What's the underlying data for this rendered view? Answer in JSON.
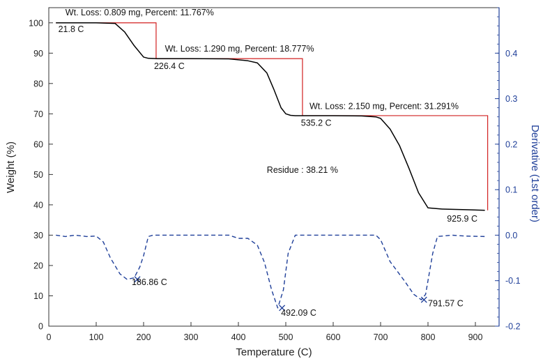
{
  "chart_data": {
    "type": "line",
    "xlabel": "Temperature (C)",
    "ylabel": "Weight (%)",
    "y2label": "Derivative (1st order)",
    "xlim": [
      0,
      950
    ],
    "ylim": [
      0,
      105
    ],
    "y2lim": [
      -0.2,
      0.5
    ],
    "x_ticks": [
      0,
      100,
      200,
      300,
      400,
      500,
      600,
      700,
      800,
      900
    ],
    "y_ticks": [
      0,
      10,
      20,
      30,
      40,
      50,
      60,
      70,
      80,
      90,
      100
    ],
    "y2_ticks": [
      -0.2,
      -0.1,
      0.0,
      0.1,
      0.2,
      0.3,
      0.4
    ],
    "grid": false,
    "colors": {
      "weight": "#000000",
      "derivative": "#1f3f99",
      "steps": "#d22020",
      "right_axis": "#1f3f99"
    },
    "series": [
      {
        "axis": "left",
        "style": "solid",
        "x": [
          15,
          100,
          140,
          160,
          180,
          200,
          210,
          230,
          300,
          380,
          420,
          440,
          460,
          475,
          490,
          500,
          510,
          520,
          535,
          600,
          660,
          690,
          700,
          720,
          740,
          760,
          780,
          800,
          830,
          880,
          920
        ],
        "y": [
          100,
          100,
          99.8,
          97,
          92.5,
          88.7,
          88.3,
          88.2,
          88.2,
          88.1,
          87.5,
          86.8,
          83.5,
          78,
          72,
          70,
          69.5,
          69.4,
          69.4,
          69.4,
          69.3,
          69,
          68.5,
          65,
          59.5,
          52,
          44,
          39,
          38.6,
          38.4,
          38.2
        ]
      },
      {
        "axis": "right",
        "style": "dashed",
        "x": [
          15,
          35,
          55,
          80,
          100,
          115,
          130,
          150,
          165,
          180,
          192,
          200,
          210,
          220,
          300,
          380,
          400,
          420,
          440,
          455,
          470,
          483,
          495,
          505,
          520,
          600,
          690,
          700,
          720,
          750,
          770,
          786,
          795,
          800,
          810,
          820,
          850,
          880,
          920
        ],
        "y": [
          0.0,
          -0.003,
          0.0,
          -0.003,
          -0.002,
          -0.015,
          -0.05,
          -0.085,
          -0.097,
          -0.094,
          -0.07,
          -0.045,
          -0.003,
          0.0,
          0.0,
          0.0,
          -0.007,
          -0.007,
          -0.022,
          -0.06,
          -0.12,
          -0.16,
          -0.12,
          -0.04,
          0.0,
          0.0,
          0.0,
          -0.01,
          -0.058,
          -0.1,
          -0.13,
          -0.142,
          -0.13,
          -0.1,
          -0.04,
          -0.003,
          0.0,
          -0.002,
          -0.003
        ]
      }
    ],
    "steps": {
      "x": [
        15,
        226.4,
        226.4,
        535.2,
        535.2,
        925.9,
        925.9
      ],
      "y": [
        100,
        100,
        88.2,
        88.2,
        69.4,
        69.4,
        38.2
      ]
    },
    "annotations": [
      {
        "text": "Wt. Loss: 0.809 mg, Percent: 11.767%",
        "x": 35,
        "y": 102.5
      },
      {
        "text": "21.8 C",
        "x": 20,
        "y": 97
      },
      {
        "text": "Wt. Loss: 1.290 mg, Percent: 18.777%",
        "x": 245,
        "y": 90.5
      },
      {
        "text": "226.4 C",
        "x": 222,
        "y": 84.8
      },
      {
        "text": "Wt. Loss: 2.150 mg, Percent: 31.291%",
        "x": 550,
        "y": 71.6
      },
      {
        "text": "535.2 C",
        "x": 532,
        "y": 66
      },
      {
        "text": "Residue : 38.21 %",
        "x": 460,
        "y": 50.5
      },
      {
        "text": "925.9 C",
        "x": 840,
        "y": 34.5
      },
      {
        "text": "186.86 C",
        "x": 175,
        "y": 13.5
      },
      {
        "text": "492.09 C",
        "x": 490,
        "y": 3.5
      },
      {
        "text": "791.57 C",
        "x": 800,
        "y": 6.5
      }
    ],
    "markers": [
      {
        "x": 186.86,
        "y2": -0.097
      },
      {
        "x": 492.09,
        "y2": -0.16
      },
      {
        "x": 791.57,
        "y2": -0.142
      }
    ]
  }
}
